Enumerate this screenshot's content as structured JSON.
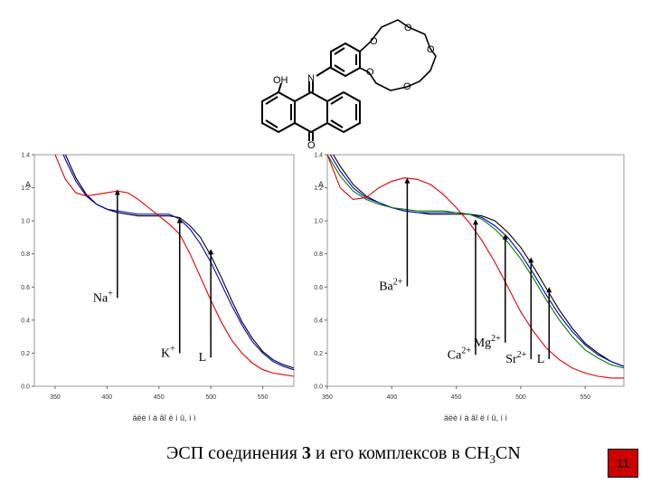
{
  "caption": {
    "prefix": "ЭСП соединения ",
    "compound": "3",
    "middle": " и его комплексов в CH",
    "subscript": "3",
    "suffix": "CN"
  },
  "page_number": "11",
  "structure": {
    "atom_labels": [
      "OH",
      "N",
      "O",
      "O",
      "O",
      "O",
      "O",
      "O"
    ]
  },
  "colors": {
    "ligand": "#000000",
    "blue_series": "#0000cc",
    "red_series": "#e00000",
    "green_series": "#008000",
    "badge": "#cc0000"
  },
  "chart_data": [
    {
      "type": "line",
      "ylabel": "A",
      "xlabel": "äëè í à âî ë í û, í ì",
      "xlim": [
        330,
        580
      ],
      "ylim": [
        0,
        1.4
      ],
      "x_ticks": [
        350,
        400,
        450,
        500,
        550
      ],
      "y_ticks": [
        0.0,
        0.2,
        0.4,
        0.6,
        0.8,
        1.0,
        1.2,
        1.4
      ],
      "grid": false,
      "x": [
        350,
        360,
        370,
        380,
        390,
        400,
        410,
        420,
        430,
        440,
        450,
        460,
        470,
        480,
        490,
        500,
        510,
        520,
        530,
        540,
        550,
        560,
        570,
        580
      ],
      "series": [
        {
          "color": "#000000",
          "values": [
            1.55,
            1.4,
            1.26,
            1.16,
            1.1,
            1.07,
            1.05,
            1.04,
            1.03,
            1.03,
            1.03,
            1.03,
            1.02,
            0.97,
            0.9,
            0.79,
            0.66,
            0.52,
            0.39,
            0.29,
            0.21,
            0.16,
            0.13,
            0.11
          ]
        },
        {
          "color": "#0000cc",
          "values": [
            1.52,
            1.37,
            1.24,
            1.15,
            1.1,
            1.07,
            1.06,
            1.05,
            1.04,
            1.04,
            1.04,
            1.04,
            1.01,
            0.95,
            0.86,
            0.75,
            0.62,
            0.49,
            0.37,
            0.27,
            0.2,
            0.15,
            0.12,
            0.1
          ]
        },
        {
          "color": "#e00000",
          "values": [
            1.4,
            1.25,
            1.17,
            1.15,
            1.16,
            1.17,
            1.18,
            1.17,
            1.13,
            1.08,
            1.03,
            0.98,
            0.92,
            0.8,
            0.66,
            0.52,
            0.39,
            0.28,
            0.2,
            0.14,
            0.1,
            0.08,
            0.07,
            0.06
          ]
        }
      ],
      "annotations": [
        {
          "label": "Na",
          "charge": "+",
          "x": 410,
          "y_tip": 1.19
        },
        {
          "label": "K",
          "charge": "+",
          "x": 470,
          "y_tip": 1.02
        },
        {
          "label": "L",
          "charge": "",
          "x": 500,
          "y_tip": 0.83
        }
      ]
    },
    {
      "type": "line",
      "ylabel": "A",
      "xlabel": "äëè í à âî ë í û, í ì",
      "xlim": [
        350,
        580
      ],
      "ylim": [
        0,
        1.4
      ],
      "x_ticks": [
        350,
        400,
        450,
        500,
        550
      ],
      "y_ticks": [
        0.0,
        0.2,
        0.4,
        0.6,
        0.8,
        1.0,
        1.2,
        1.4
      ],
      "grid": false,
      "x": [
        350,
        360,
        370,
        380,
        390,
        400,
        410,
        420,
        430,
        440,
        450,
        460,
        470,
        480,
        490,
        500,
        510,
        520,
        530,
        540,
        550,
        560,
        570,
        580
      ],
      "series": [
        {
          "color": "#000000",
          "values": [
            1.46,
            1.33,
            1.22,
            1.15,
            1.11,
            1.08,
            1.06,
            1.05,
            1.04,
            1.04,
            1.04,
            1.04,
            1.03,
            1.0,
            0.93,
            0.84,
            0.72,
            0.59,
            0.46,
            0.35,
            0.26,
            0.2,
            0.15,
            0.12
          ]
        },
        {
          "color": "#0000cc",
          "values": [
            1.43,
            1.3,
            1.2,
            1.14,
            1.11,
            1.08,
            1.06,
            1.05,
            1.05,
            1.05,
            1.05,
            1.04,
            1.02,
            0.97,
            0.9,
            0.8,
            0.68,
            0.55,
            0.43,
            0.33,
            0.25,
            0.19,
            0.15,
            0.12
          ]
        },
        {
          "color": "#008000",
          "values": [
            1.4,
            1.27,
            1.18,
            1.13,
            1.1,
            1.08,
            1.07,
            1.06,
            1.06,
            1.06,
            1.05,
            1.04,
            1.01,
            0.95,
            0.87,
            0.77,
            0.65,
            0.52,
            0.4,
            0.3,
            0.22,
            0.17,
            0.13,
            0.11
          ]
        },
        {
          "color": "#e00000",
          "values": [
            1.4,
            1.2,
            1.13,
            1.14,
            1.2,
            1.24,
            1.26,
            1.25,
            1.22,
            1.16,
            1.08,
            0.99,
            0.88,
            0.75,
            0.6,
            0.45,
            0.33,
            0.23,
            0.16,
            0.11,
            0.08,
            0.06,
            0.05,
            0.05
          ]
        }
      ],
      "annotations": [
        {
          "label": "Ba",
          "charge": "2+",
          "x": 412,
          "y_tip": 1.26
        },
        {
          "label": "Ca",
          "charge": "2+",
          "x": 465,
          "y_tip": 1.01
        },
        {
          "label": "Mg",
          "charge": "2+",
          "x": 488,
          "y_tip": 0.92
        },
        {
          "label": "Sr",
          "charge": "2+",
          "x": 508,
          "y_tip": 0.78
        },
        {
          "label": "L",
          "charge": "",
          "x": 522,
          "y_tip": 0.6
        }
      ]
    }
  ]
}
